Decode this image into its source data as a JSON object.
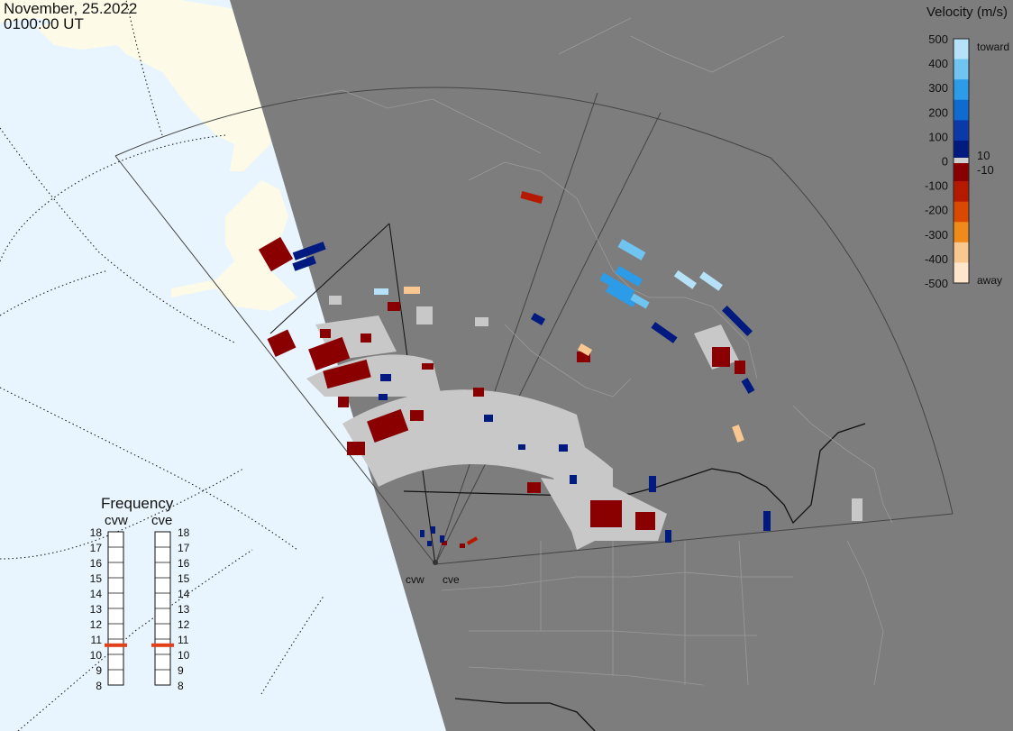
{
  "header": {
    "date": "November, 25.2022",
    "time": "0100:00 UT"
  },
  "legend": {
    "title": "Velocity (m/s)",
    "ticks": [
      "500",
      "400",
      "300",
      "200",
      "100",
      "0",
      "-100",
      "-200",
      "-300",
      "-400",
      "-500"
    ],
    "toward_label": "toward",
    "away_label": "away",
    "plus_label": "10",
    "minus_label": "-10",
    "colors": [
      "#b5e2f8",
      "#6fc4f0",
      "#2c9be8",
      "#106bd0",
      "#0a3aa8",
      "#001a80",
      "#8a0000",
      "#b51a00",
      "#d94a00",
      "#f08a1a",
      "#f9c890",
      "#fde6cc"
    ]
  },
  "frequency": {
    "title": "Frequency",
    "radars": [
      "cvw",
      "cve"
    ],
    "scale": [
      "18",
      "17",
      "16",
      "15",
      "14",
      "13",
      "12",
      "11",
      "10",
      "9",
      "8"
    ],
    "cvw_mhz": 10.6,
    "cve_mhz": 10.6,
    "marker_color": "#e0401a"
  },
  "sites": {
    "west": "cvw",
    "east": "cve"
  },
  "colors": {
    "ocean": "#e8f5fe",
    "land": "#fdfbe8",
    "night": "#7d7d7d",
    "scatter_gray": "#c8c8c8",
    "border": "#111111"
  }
}
